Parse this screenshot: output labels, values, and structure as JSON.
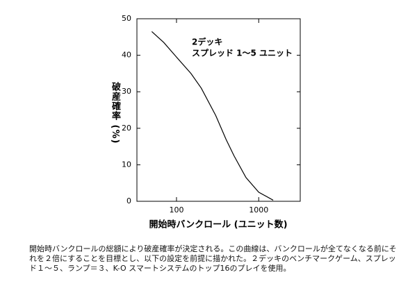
{
  "chart_data": {
    "type": "line",
    "log_x": true,
    "x_label": "開始時バンクロール (ユニット数)",
    "y_label": "破産確率 (%)",
    "annotation": [
      "2デッキ",
      "スプレッド 1～5 ユニット"
    ],
    "x": [
      50,
      70,
      100,
      150,
      200,
      300,
      400,
      500,
      700,
      1000,
      1500
    ],
    "series": [
      {
        "name": "破産確率",
        "color": "#000000",
        "values": [
          46.5,
          43.5,
          39.5,
          35,
          31,
          23.5,
          17,
          12.5,
          6.5,
          2.5,
          0.3
        ]
      }
    ],
    "xlim": [
      33,
      3200
    ],
    "xticks": [
      100,
      1000
    ],
    "ylim": [
      0,
      50
    ],
    "yticks": [
      0,
      10,
      20,
      30,
      40,
      50
    ]
  },
  "caption": "開始時バンクロールの総額により破産確率が決定される。この曲線は、バンクロールが全てなくなる前にそれを２倍にすることを目標とし、以下の設定を前提に描かれた。２デッキのベンチマークゲーム、スプレッド１～５、ランプ＝３、K-O スマートシステムのトップ16のプレイを使用。"
}
